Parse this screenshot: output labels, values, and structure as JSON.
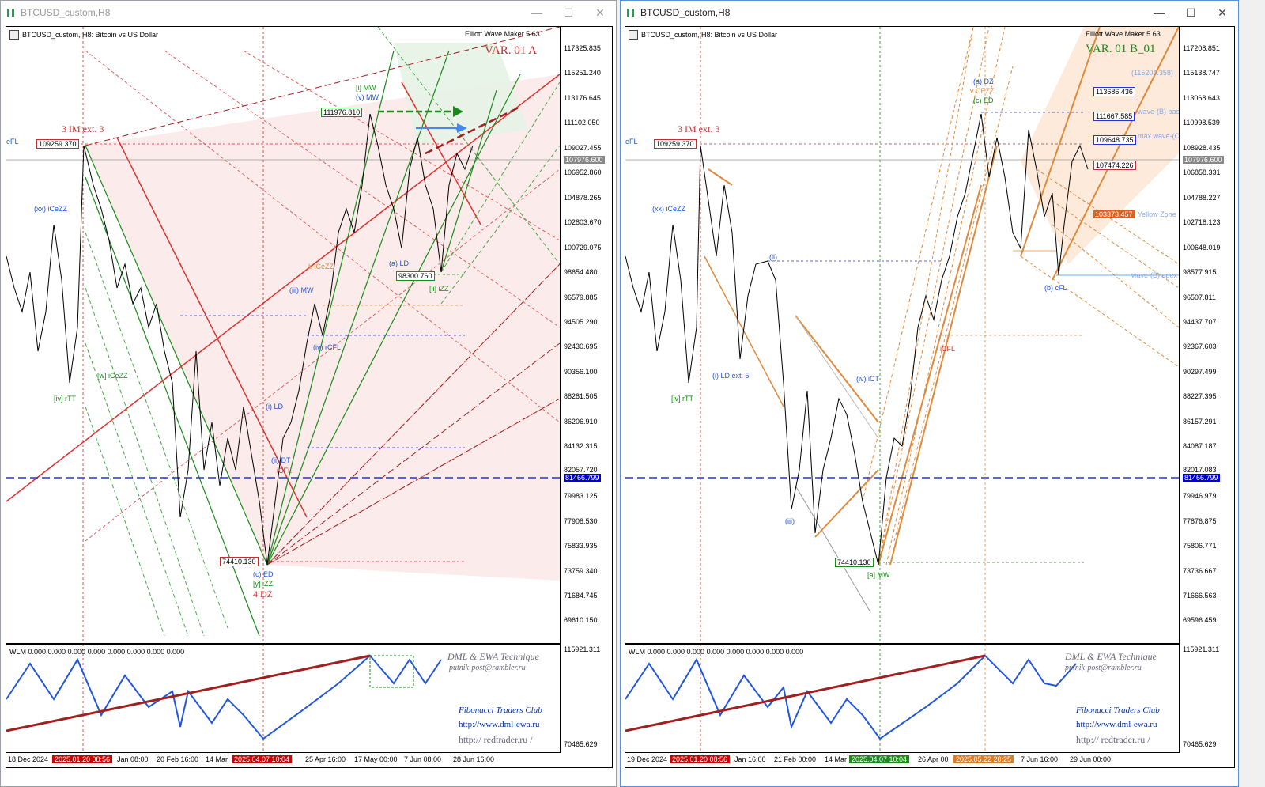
{
  "windows": [
    {
      "title": "BTCUSD_custom,H8",
      "symbol_text": "BTCUSD_custom, H8:  Bitcoin vs US Dollar",
      "ewm_text": "Elliott Wave Maker 5.63",
      "variant_label": "VAR. 01 A",
      "price_labels": [
        "117325.835",
        "115251.240",
        "113176.645",
        "111102.050",
        "109027.455",
        "107976.600",
        "106952.860",
        "104878.265",
        "102803.670",
        "100729.075",
        "98654.480",
        "96579.885",
        "94505.290",
        "92430.695",
        "90356.100",
        "88281.505",
        "86206.910",
        "84132.315",
        "82057.720",
        "81466.799",
        "79983.125",
        "77908.530",
        "75833.935",
        "73759.340",
        "71684.745",
        "69610.150"
      ],
      "indicator_price_labels": [
        "115921.311",
        "70465.629"
      ],
      "time_labels": [
        "18 Dec 2024",
        "2025.01.20 08:56",
        "Jan 08:00",
        "20 Feb 16:00",
        "14 Mar",
        "2025.04.07 10:04",
        "25 Apr 16:00",
        "17 May 00:00",
        "7 Jun 08:00",
        "28 Jun 16:00"
      ],
      "price_boxes": [
        "109259.370",
        "111976.810",
        "98300.760",
        "74410.130"
      ],
      "annotations": [
        "3 IM ext. 3",
        "4 DZ",
        "eFL",
        "(xx) iCeZZ",
        "[iv] rTT",
        "[w] iCeZZ",
        "(c) ED",
        "[y] iZZ",
        "[i] MW",
        "(v) MW",
        "(a) LD",
        "[ii] iZZ",
        "(iii) MW",
        "(iv) rCFL",
        "b iCeZZ",
        "(i) LD",
        "(ii) DT",
        "iCFL"
      ],
      "indicator_label": "WLM 0.000 0.000 0.000 0.000 0.000 0.000 0.000 0.000",
      "watermark": [
        "DML & EWA Technique",
        "putnik-post@rambler.ru",
        "Fibonacci    Traders    Club",
        "http://www.dml-ewa.ru",
        "http://  redtrader.ru  /"
      ]
    },
    {
      "title": "BTCUSD_custom,H8",
      "symbol_text": "BTCUSD_custom, H8:  Bitcoin vs US Dollar",
      "ewm_text": "Elliott Wave Maker 5.63",
      "variant_label": "VAR. 01 B_01",
      "price_labels": [
        "117208.851",
        "115138.747",
        "113068.643",
        "110998.539",
        "108928.435",
        "107976.600",
        "106858.331",
        "104788.227",
        "102718.123",
        "100648.019",
        "98577.915",
        "96507.811",
        "94437.707",
        "92367.603",
        "90297.499",
        "88227.395",
        "86157.291",
        "84087.187",
        "82017.083",
        "81466.799",
        "79946.979",
        "77876.875",
        "75806.771",
        "73736.667",
        "71666.563",
        "69596.459"
      ],
      "indicator_price_labels": [
        "115921.311",
        "70465.629"
      ],
      "time_labels": [
        "19 Dec 2024",
        "2025.01.20 08:56",
        "Jan 16:00",
        "21 Feb 00:00",
        "14 Mar",
        "2025.04.07 10:04",
        "26 Apr 00",
        "2025.05.22 20:25",
        "7 Jun 16:00",
        "29 Jun 00:00"
      ],
      "price_boxes": [
        "109259.370",
        "74410.130",
        "113686.436",
        "111667.585",
        "109648.735",
        "107474.226",
        "103373.457"
      ],
      "annotations": [
        "3 IM ext. 3",
        "eFL",
        "(xx) iCeZZ",
        "[iv] rTT",
        "(i) LD ext. 5",
        "(ii)",
        "(iii)",
        "(iv) iCT",
        "[a] MW",
        "(a) DZ",
        "v CEZZ",
        "(c) ED",
        "(b) cFL",
        "wave-(B) base",
        "max wave-(C)",
        "Yellow Zone",
        "wave-(B) apex",
        "(115204.358)",
        "iCFL"
      ],
      "indicator_label": "WLM 0.000 0.000 0.000 0.000 0.000 0.000 0.000 0.000",
      "watermark": [
        "DML & EWA Technique",
        "putnik-post@rambler.ru",
        "Fibonacci    Traders    Club",
        "http://www.dml-ewa.ru",
        "http://  redtrader.ru  /"
      ]
    }
  ],
  "window_controls": {
    "minimize": "—",
    "maximize": "☐",
    "close": "✕"
  },
  "colors": {
    "red_zone": "#f9d7d7",
    "green_zone": "#dff0df",
    "blue_line": "#2233dd",
    "orange": "#e08a3c",
    "indicator_blue": "#2255dd",
    "indicator_red": "#a02020"
  }
}
